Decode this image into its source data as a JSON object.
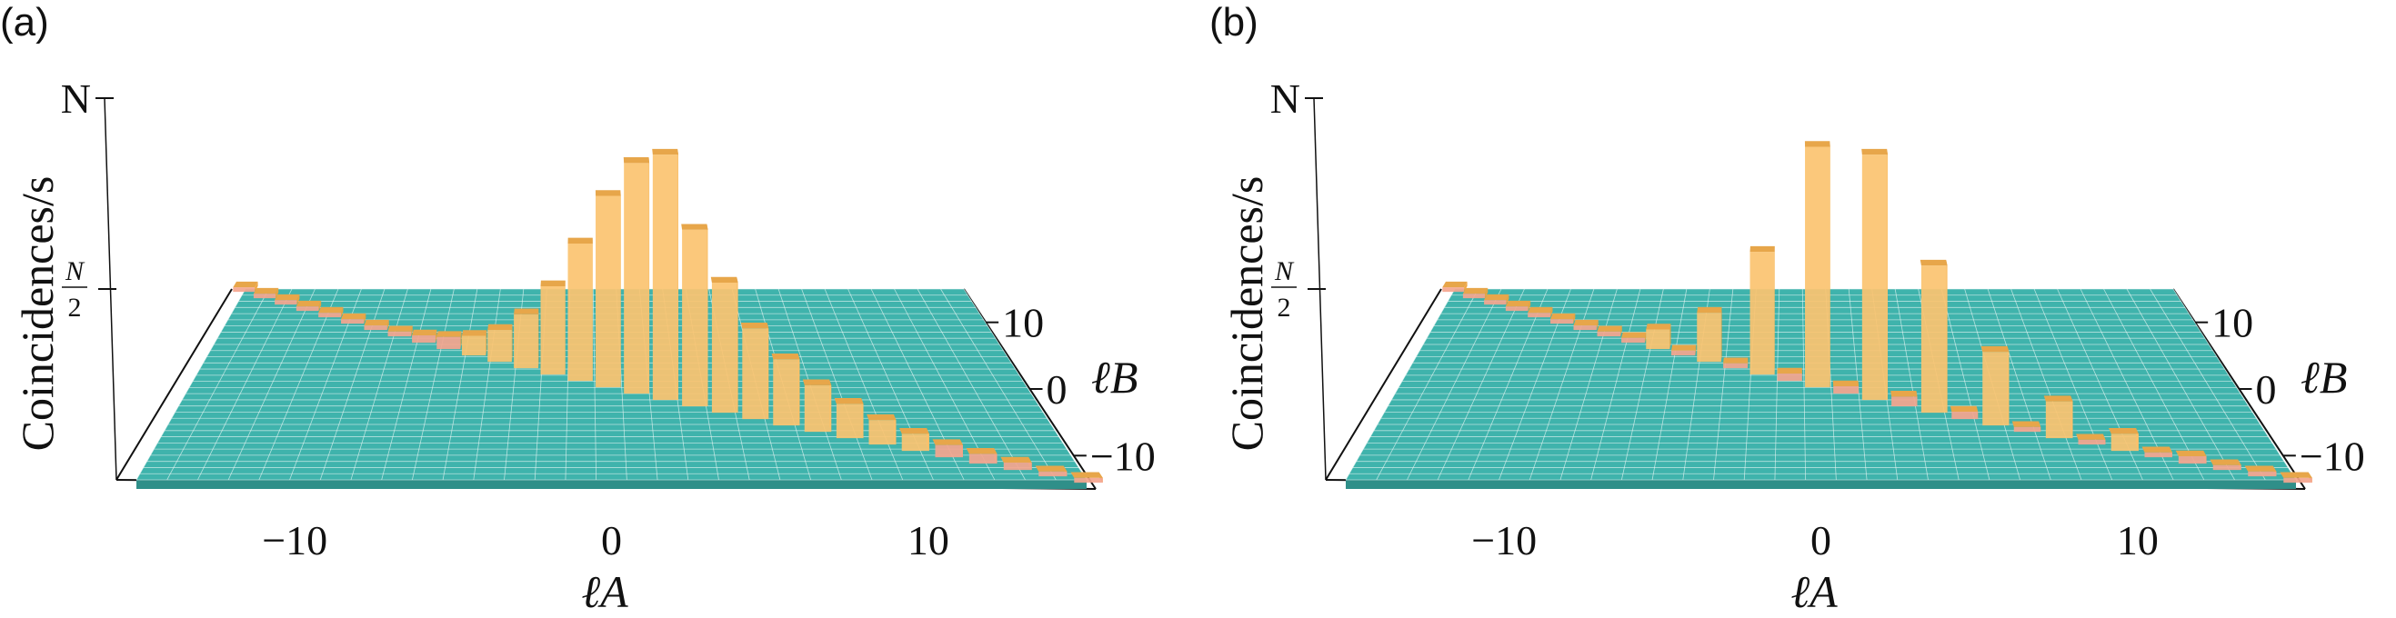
{
  "figure": {
    "colors": {
      "floor_top": "#3fb3ac",
      "floor_side": "#2f8f89",
      "floor_grid": "#e8f6f4",
      "bar_front": "#fbc370",
      "bar_side": "#f0a23a",
      "bar_top": "#e7a64a",
      "low_bar": "#f4a58e",
      "axis": "#111111"
    }
  },
  "chart_data": [
    {
      "panel_label": "(a)",
      "type": "bar3d",
      "title": "",
      "zlabel": "Coincidences/s",
      "z_ticks": [
        "N",
        "N/2"
      ],
      "xlabel": "ℓA",
      "ylabel": "ℓB",
      "x_ticks": [
        "−10",
        "0",
        "10"
      ],
      "y_ticks": [
        "10",
        "0",
        "−10"
      ],
      "xlim": [
        -15,
        15
      ],
      "ylim": [
        -15,
        15
      ],
      "zlim": [
        0,
        1
      ],
      "grid": true,
      "legend": "none",
      "points_note_anti_diagonal": "bars at ℓB = −ℓA",
      "series": [
        {
          "name": "",
          "x": [
            -15,
            -14,
            -13,
            -12,
            -11,
            -10,
            -9,
            -8,
            -7,
            -6,
            -5,
            -4,
            -3,
            -2,
            -1,
            0,
            1,
            2,
            3,
            4,
            5,
            6,
            7,
            8,
            9,
            10,
            11,
            12,
            13,
            14,
            15
          ],
          "y": [
            15,
            14,
            13,
            12,
            11,
            10,
            9,
            8,
            7,
            6,
            5,
            4,
            3,
            2,
            1,
            0,
            -1,
            -2,
            -3,
            -4,
            -5,
            -6,
            -7,
            -8,
            -9,
            -10,
            -11,
            -12,
            -13,
            -14,
            -15
          ],
          "values": [
            0.01,
            0.01,
            0.01,
            0.01,
            0.01,
            0.01,
            0.01,
            0.02,
            0.03,
            0.05,
            0.08,
            0.13,
            0.22,
            0.36,
            0.56,
            0.78,
            0.94,
            1.0,
            0.72,
            0.53,
            0.37,
            0.27,
            0.19,
            0.14,
            0.1,
            0.07,
            0.05,
            0.04,
            0.03,
            0.02,
            0.02
          ]
        }
      ]
    },
    {
      "panel_label": "(b)",
      "type": "bar3d",
      "title": "",
      "zlabel": "Coincidences/s",
      "z_ticks": [
        "N",
        "N/2"
      ],
      "xlabel": "ℓA",
      "ylabel": "ℓB",
      "x_ticks": [
        "−10",
        "0",
        "10"
      ],
      "y_ticks": [
        "10",
        "0",
        "−10"
      ],
      "xlim": [
        -15,
        15
      ],
      "ylim": [
        -15,
        15
      ],
      "zlim": [
        0,
        1
      ],
      "grid": true,
      "legend": "none",
      "series": [
        {
          "name": "",
          "x": [
            -15,
            -14,
            -13,
            -12,
            -11,
            -10,
            -9,
            -8,
            -7,
            -6,
            -5,
            -4,
            -3,
            -2,
            -1,
            0,
            1,
            2,
            3,
            4,
            5,
            6,
            7,
            8,
            9,
            10,
            11,
            12,
            13,
            14,
            15
          ],
          "y": [
            15,
            14,
            13,
            12,
            11,
            10,
            9,
            8,
            7,
            6,
            5,
            4,
            3,
            2,
            1,
            0,
            -1,
            -2,
            -3,
            -4,
            -5,
            -6,
            -7,
            -8,
            -9,
            -10,
            -11,
            -12,
            -13,
            -14,
            -15
          ],
          "values": [
            0.01,
            0.01,
            0.01,
            0.01,
            0.01,
            0.01,
            0.01,
            0.02,
            0.02,
            0.08,
            0.02,
            0.2,
            0.02,
            0.5,
            0.03,
            0.98,
            0.03,
            1.0,
            0.04,
            0.6,
            0.03,
            0.3,
            0.02,
            0.15,
            0.02,
            0.07,
            0.02,
            0.03,
            0.02,
            0.02,
            0.02
          ]
        }
      ]
    }
  ]
}
